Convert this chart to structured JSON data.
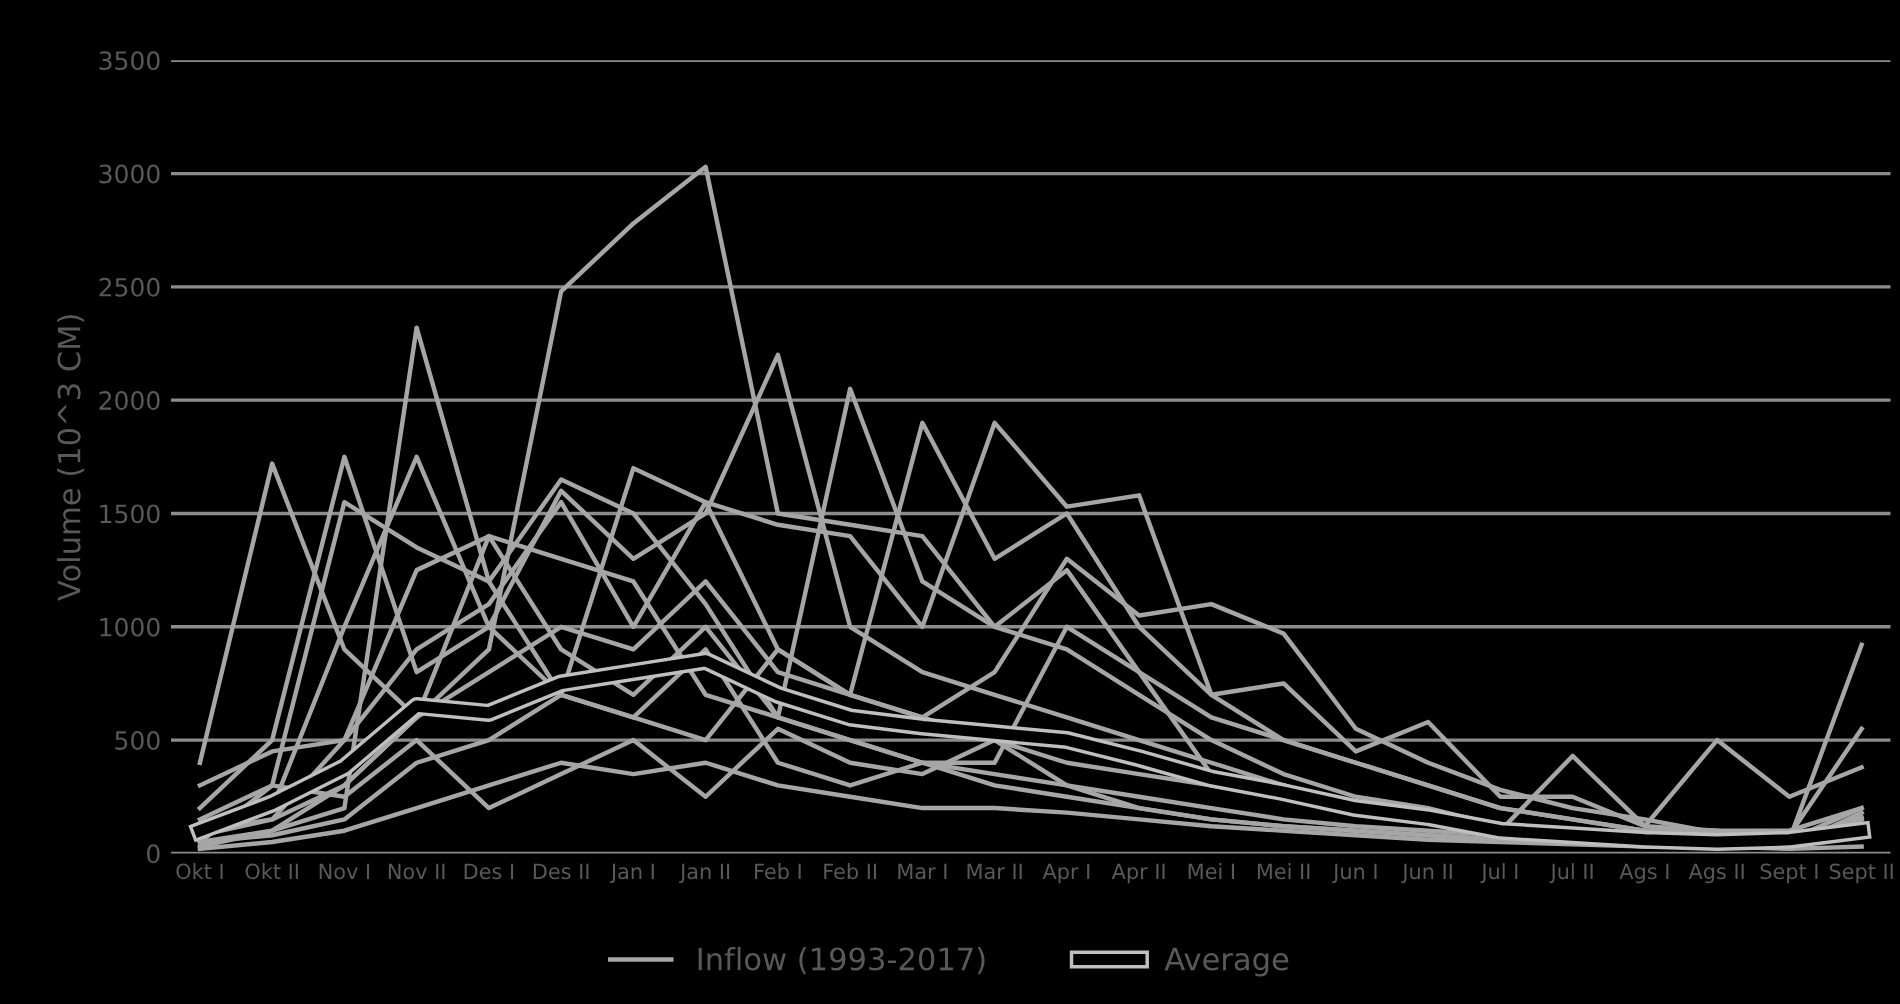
{
  "chart_data": {
    "type": "line",
    "ylabel": "Volume (10^3 CM)",
    "categories": [
      "Okt I",
      "Okt II",
      "Nov I",
      "Nov II",
      "Des I",
      "Des II",
      "Jan I",
      "Jan II",
      "Feb I",
      "Feb II",
      "Mar I",
      "Mar II",
      "Apr I",
      "Apr II",
      "Mei I",
      "Mei II",
      "Jun I",
      "Jun II",
      "Jul I",
      "Jul II",
      "Ags I",
      "Ags II",
      "Sept I",
      "Sept II"
    ],
    "ylim": [
      0,
      3500
    ],
    "yticks": [
      0,
      500,
      1000,
      1500,
      2000,
      2500,
      3000,
      3500
    ],
    "grid": "y",
    "legend": "bottom",
    "series": [
      {
        "name": "Inflow (1993-2017)",
        "color": "#a6a6a6",
        "values": [
          100,
          150,
          300,
          600,
          900,
          2480,
          2780,
          3030,
          1500,
          1450,
          1400,
          1000,
          900,
          700,
          500,
          350,
          250,
          200,
          120,
          100,
          80,
          70,
          60,
          200
        ]
      },
      {
        "color": "#a6a6a6",
        "values": [
          50,
          100,
          200,
          2320,
          1200,
          700,
          600,
          500,
          900,
          700,
          600,
          500,
          400,
          350,
          300,
          250,
          200,
          150,
          100,
          80,
          60,
          50,
          50,
          100
        ]
      },
      {
        "color": "#a6a6a6",
        "values": [
          400,
          1720,
          900,
          600,
          1400,
          900,
          700,
          1000,
          600,
          500,
          400,
          350,
          300,
          250,
          200,
          150,
          120,
          100,
          80,
          60,
          50,
          40,
          40,
          80
        ]
      },
      {
        "color": "#a6a6a6",
        "values": [
          200,
          500,
          1750,
          800,
          1000,
          1600,
          1300,
          1500,
          2200,
          1000,
          800,
          700,
          600,
          500,
          400,
          300,
          200,
          150,
          100,
          80,
          60,
          50,
          60,
          150
        ]
      },
      {
        "color": "#a6a6a6",
        "values": [
          50,
          300,
          1550,
          1350,
          1200,
          1650,
          1500,
          1100,
          600,
          2050,
          1200,
          1000,
          1250,
          800,
          600,
          500,
          400,
          300,
          200,
          150,
          100,
          80,
          70,
          150
        ]
      },
      {
        "color": "#a6a6a6",
        "values": [
          100,
          200,
          1000,
          1750,
          1000,
          700,
          1700,
          1550,
          900,
          700,
          1900,
          1300,
          1500,
          1000,
          700,
          500,
          400,
          300,
          200,
          150,
          100,
          100,
          100,
          200
        ]
      },
      {
        "color": "#a6a6a6",
        "values": [
          80,
          150,
          500,
          900,
          1100,
          1550,
          1000,
          1550,
          1450,
          1400,
          1000,
          1900,
          1530,
          1580,
          700,
          750,
          450,
          580,
          250,
          250,
          120,
          100,
          60,
          920
        ]
      },
      {
        "color": "#a6a6a6",
        "values": [
          30,
          100,
          300,
          600,
          800,
          1000,
          900,
          1200,
          800,
          700,
          600,
          800,
          1300,
          1050,
          1100,
          970,
          550,
          400,
          280,
          200,
          150,
          90,
          80,
          550
        ]
      },
      {
        "color": "#a6a6a6",
        "values": [
          300,
          450,
          500,
          1250,
          1400,
          1300,
          1200,
          700,
          600,
          500,
          400,
          400,
          1000,
          800,
          350,
          300,
          200,
          150,
          100,
          430,
          120,
          500,
          250,
          380
        ]
      },
      {
        "color": "#a6a6a6",
        "values": [
          20,
          50,
          100,
          200,
          300,
          400,
          350,
          400,
          300,
          250,
          200,
          200,
          180,
          150,
          120,
          100,
          80,
          60,
          50,
          40,
          30,
          30,
          20,
          30
        ]
      },
      {
        "color": "#a6a6a6",
        "values": [
          50,
          80,
          150,
          400,
          500,
          700,
          600,
          900,
          400,
          300,
          400,
          300,
          250,
          200,
          150,
          120,
          100,
          80,
          60,
          50,
          40,
          40,
          30,
          180
        ]
      },
      {
        "color": "#a6a6a6",
        "values": [
          150,
          300,
          250,
          500,
          200,
          350,
          500,
          250,
          550,
          400,
          350,
          500,
          300,
          200,
          150,
          120,
          100,
          80,
          60,
          50,
          50,
          40,
          40,
          160
        ]
      },
      {
        "name": "Average",
        "color": "#000000",
        "values": [
          100,
          220,
          380,
          650,
          620,
          750,
          800,
          850,
          700,
          600,
          560,
          530,
          500,
          420,
          330,
          270,
          200,
          160,
          100,
          80,
          60,
          50,
          60,
          100
        ]
      }
    ]
  }
}
